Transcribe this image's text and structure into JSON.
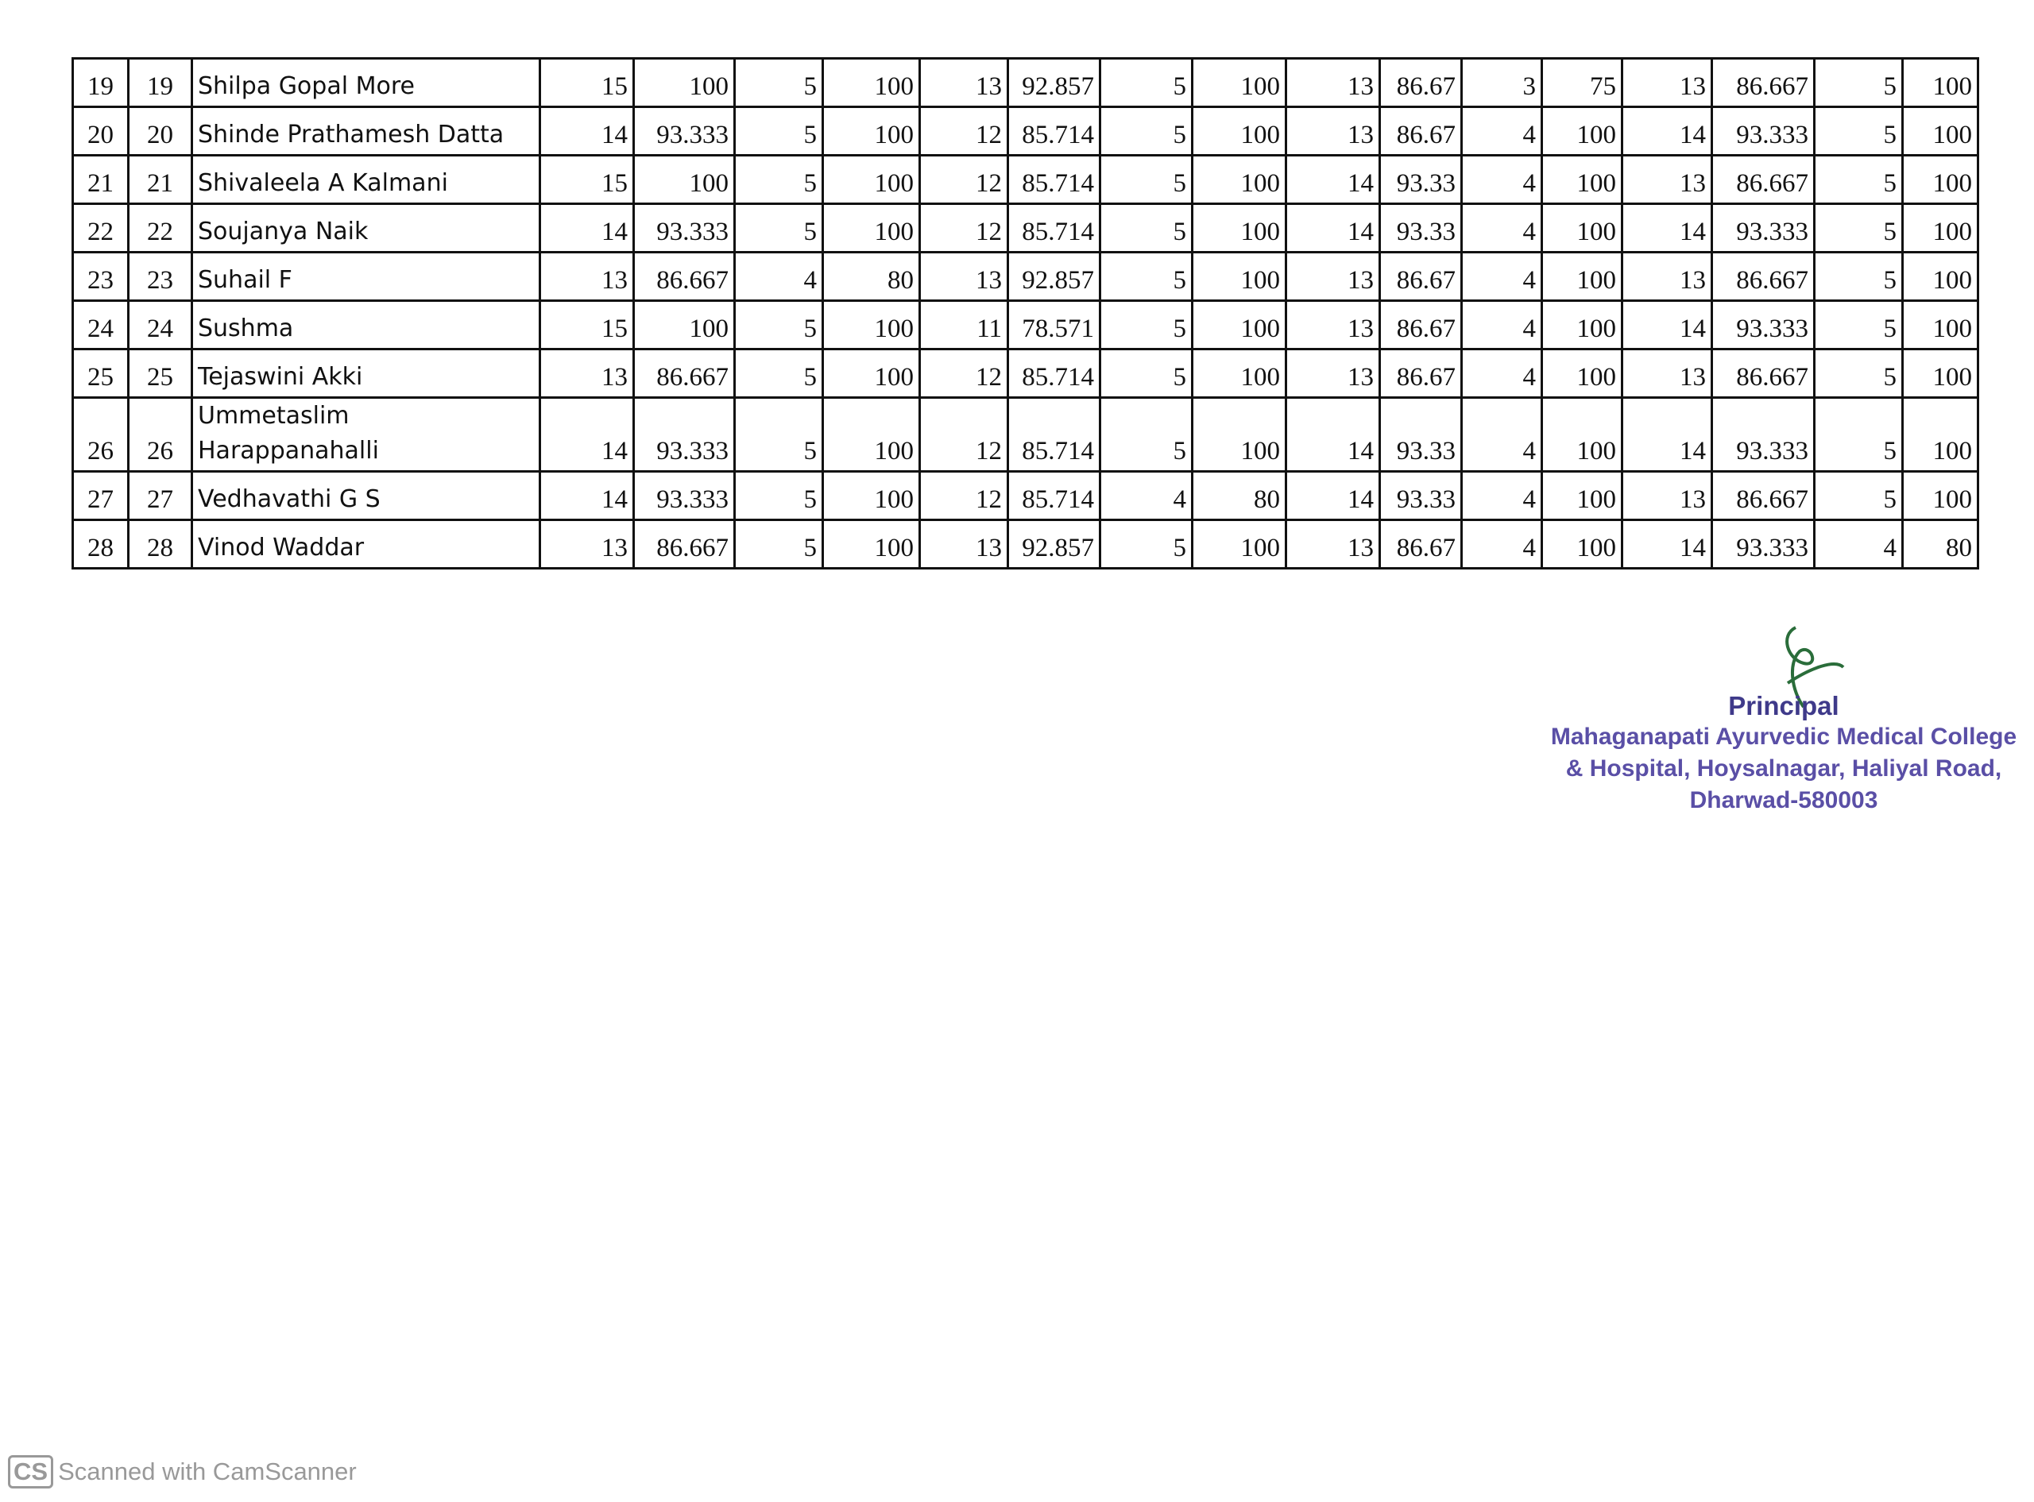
{
  "table": {
    "rows": [
      [
        "19",
        "19",
        "Shilpa Gopal More",
        "15",
        "100",
        "5",
        "100",
        "13",
        "92.857",
        "5",
        "100",
        "13",
        "86.67",
        "3",
        "75",
        "13",
        "86.667",
        "5",
        "100"
      ],
      [
        "20",
        "20",
        "Shinde Prathamesh Datta",
        "14",
        "93.333",
        "5",
        "100",
        "12",
        "85.714",
        "5",
        "100",
        "13",
        "86.67",
        "4",
        "100",
        "14",
        "93.333",
        "5",
        "100"
      ],
      [
        "21",
        "21",
        "Shivaleela A Kalmani",
        "15",
        "100",
        "5",
        "100",
        "12",
        "85.714",
        "5",
        "100",
        "14",
        "93.33",
        "4",
        "100",
        "13",
        "86.667",
        "5",
        "100"
      ],
      [
        "22",
        "22",
        "Soujanya Naik",
        "14",
        "93.333",
        "5",
        "100",
        "12",
        "85.714",
        "5",
        "100",
        "14",
        "93.33",
        "4",
        "100",
        "14",
        "93.333",
        "5",
        "100"
      ],
      [
        "23",
        "23",
        "Suhail F",
        "13",
        "86.667",
        "4",
        "80",
        "13",
        "92.857",
        "5",
        "100",
        "13",
        "86.67",
        "4",
        "100",
        "13",
        "86.667",
        "5",
        "100"
      ],
      [
        "24",
        "24",
        "Sushma",
        "15",
        "100",
        "5",
        "100",
        "11",
        "78.571",
        "5",
        "100",
        "13",
        "86.67",
        "4",
        "100",
        "14",
        "93.333",
        "5",
        "100"
      ],
      [
        "25",
        "25",
        "Tejaswini Akki",
        "13",
        "86.667",
        "5",
        "100",
        "12",
        "85.714",
        "5",
        "100",
        "13",
        "86.67",
        "4",
        "100",
        "13",
        "86.667",
        "5",
        "100"
      ],
      [
        "26",
        "26",
        "Ummetaslim Harappanahalli",
        "14",
        "93.333",
        "5",
        "100",
        "12",
        "85.714",
        "5",
        "100",
        "14",
        "93.33",
        "4",
        "100",
        "14",
        "93.333",
        "5",
        "100"
      ],
      [
        "27",
        "27",
        "Vedhavathi G S",
        "14",
        "93.333",
        "5",
        "100",
        "12",
        "85.714",
        "4",
        "80",
        "14",
        "93.33",
        "4",
        "100",
        "13",
        "86.667",
        "5",
        "100"
      ],
      [
        "28",
        "28",
        "Vinod Waddar",
        "13",
        "86.667",
        "5",
        "100",
        "13",
        "92.857",
        "5",
        "100",
        "13",
        "86.67",
        "4",
        "100",
        "14",
        "93.333",
        "4",
        "80"
      ]
    ]
  },
  "signature": {
    "title": "Principal",
    "lines": [
      "Mahaganapati Ayurvedic Medical College",
      "& Hospital, Hoysalnagar, Haliyal Road,",
      "Dharwad-580003"
    ]
  },
  "footer": {
    "logo": "CS",
    "text": "Scanned with CamScanner"
  }
}
